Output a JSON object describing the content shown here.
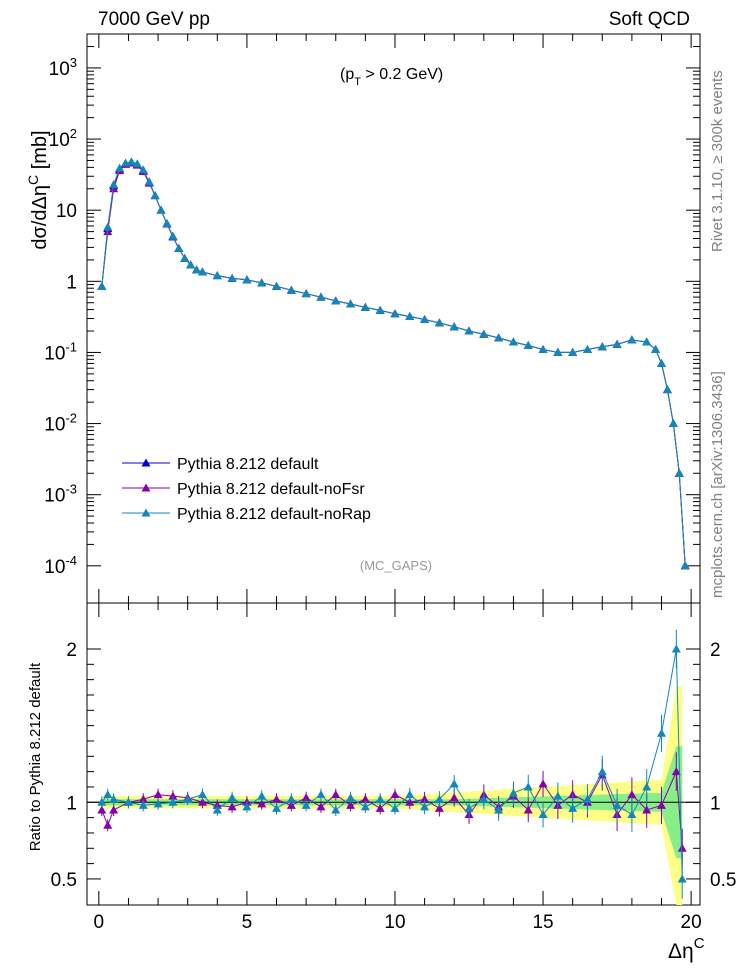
{
  "header": {
    "left_label": "7000 GeV pp",
    "right_label": "Soft QCD"
  },
  "side_labels": {
    "rivet": "Rivet 3.1.10, ≥ 300k events",
    "mcplots": "mcplots.cern.ch [arXiv:1306.3436]"
  },
  "annotations": {
    "cut_main": "(p",
    "cut_sub": "T",
    "cut_rest": " > 0.2 GeV)",
    "analysis": "(MC_GAPS)"
  },
  "colors": {
    "default": "#0000cc",
    "noFsr": "#8800aa",
    "noRap": "#1188bb",
    "band_yellow": "#ffff88",
    "band_green": "#88ee88"
  },
  "chart_data": [
    {
      "type": "line",
      "panel": "main",
      "ylabel": "dσ/dΔη^C [mb]",
      "yscale": "log",
      "ylim": [
        3e-05,
        3000
      ],
      "xlim": [
        -0.4,
        20.3
      ],
      "xticks": [
        0,
        5,
        10,
        15,
        20
      ],
      "yticks": [
        "10^3",
        "10^2",
        "10",
        "1",
        "10^-1",
        "10^-2",
        "10^-3",
        "10^-4"
      ],
      "legend_placement": "lower-left",
      "x": [
        0.1,
        0.3,
        0.5,
        0.7,
        0.9,
        1.1,
        1.3,
        1.5,
        1.7,
        1.9,
        2.1,
        2.3,
        2.5,
        2.7,
        2.9,
        3.1,
        3.3,
        3.5,
        4.0,
        4.5,
        5.0,
        5.5,
        6.0,
        6.5,
        7.0,
        7.5,
        8.0,
        8.5,
        9.0,
        9.5,
        10.0,
        10.5,
        11.0,
        11.5,
        12.0,
        12.5,
        13.0,
        13.5,
        14.0,
        14.5,
        15.0,
        15.5,
        16.0,
        16.5,
        17.0,
        17.5,
        18.0,
        18.5,
        18.8,
        19.0,
        19.2,
        19.4,
        19.6,
        19.8
      ],
      "series": [
        {
          "name": "Pythia 8.212 default",
          "values": [
            0.85,
            5.5,
            22,
            38,
            45,
            47,
            44,
            36,
            25,
            16,
            10,
            6.5,
            4.3,
            2.9,
            2.1,
            1.7,
            1.45,
            1.35,
            1.2,
            1.1,
            1.05,
            0.95,
            0.85,
            0.75,
            0.67,
            0.6,
            0.53,
            0.48,
            0.43,
            0.39,
            0.35,
            0.32,
            0.29,
            0.26,
            0.23,
            0.2,
            0.18,
            0.16,
            0.14,
            0.125,
            0.11,
            0.1,
            0.1,
            0.11,
            0.12,
            0.13,
            0.15,
            0.14,
            0.11,
            0.07,
            0.03,
            0.01,
            0.002,
            0.0001
          ]
        },
        {
          "name": "Pythia 8.212 default-noFsr",
          "values": [
            0.85,
            5.0,
            20,
            36,
            44,
            46,
            43,
            35,
            24,
            16,
            10,
            6.4,
            4.2,
            2.9,
            2.1,
            1.7,
            1.45,
            1.35,
            1.2,
            1.1,
            1.05,
            0.95,
            0.85,
            0.75,
            0.67,
            0.6,
            0.53,
            0.48,
            0.43,
            0.39,
            0.35,
            0.32,
            0.29,
            0.26,
            0.23,
            0.2,
            0.18,
            0.16,
            0.14,
            0.125,
            0.11,
            0.1,
            0.1,
            0.11,
            0.12,
            0.13,
            0.15,
            0.14,
            0.11,
            0.07,
            0.03,
            0.01,
            0.002,
            0.0001
          ]
        },
        {
          "name": "Pythia 8.212 default-noRap",
          "values": [
            0.85,
            5.8,
            23,
            39,
            46,
            48,
            45,
            37,
            25,
            16,
            10,
            6.5,
            4.3,
            2.9,
            2.1,
            1.7,
            1.45,
            1.35,
            1.2,
            1.1,
            1.05,
            0.95,
            0.85,
            0.75,
            0.67,
            0.6,
            0.53,
            0.48,
            0.43,
            0.39,
            0.35,
            0.32,
            0.29,
            0.26,
            0.23,
            0.2,
            0.18,
            0.16,
            0.14,
            0.125,
            0.11,
            0.1,
            0.1,
            0.11,
            0.12,
            0.13,
            0.15,
            0.14,
            0.11,
            0.07,
            0.03,
            0.01,
            0.002,
            0.0001
          ]
        }
      ]
    },
    {
      "type": "line",
      "panel": "ratio",
      "ylabel": "Ratio to Pythia 8.212 default",
      "xlabel": "Δη^C",
      "ylim": [
        0.33,
        2.3
      ],
      "xlim": [
        -0.4,
        20.3
      ],
      "xticks": [
        0,
        5,
        10,
        15,
        20
      ],
      "yticks": [
        0.5,
        1,
        2
      ],
      "x": [
        0.1,
        0.3,
        0.5,
        1.0,
        1.5,
        2.0,
        2.5,
        3.0,
        3.5,
        4.0,
        4.5,
        5.0,
        5.5,
        6.0,
        6.5,
        7.0,
        7.5,
        8.0,
        8.5,
        9.0,
        9.5,
        10.0,
        10.5,
        11.0,
        11.5,
        12.0,
        12.5,
        13.0,
        13.5,
        14.0,
        14.5,
        15.0,
        15.5,
        16.0,
        16.5,
        17.0,
        17.5,
        18.0,
        18.5,
        19.0,
        19.5,
        19.7
      ],
      "series": [
        {
          "name": "Pythia 8.212 default-noFsr",
          "values": [
            0.95,
            0.85,
            0.95,
            1.0,
            1.02,
            1.05,
            1.04,
            1.03,
            1.0,
            0.98,
            0.97,
            1.0,
            0.99,
            1.02,
            0.98,
            1.03,
            0.97,
            1.05,
            0.98,
            1.02,
            0.96,
            1.05,
            1.0,
            1.02,
            0.96,
            1.03,
            0.92,
            1.05,
            0.97,
            1.04,
            0.95,
            1.12,
            0.98,
            1.05,
            1.0,
            1.18,
            0.92,
            1.05,
            0.95,
            0.98,
            1.2,
            0.7
          ]
        },
        {
          "name": "Pythia 8.212 default-noRap",
          "values": [
            1.0,
            1.05,
            1.02,
            1.0,
            0.98,
            0.99,
            1.0,
            1.02,
            1.05,
            0.95,
            1.03,
            0.97,
            1.04,
            0.96,
            1.02,
            0.98,
            1.05,
            0.95,
            1.03,
            0.97,
            1.02,
            0.96,
            1.05,
            0.97,
            1.02,
            1.12,
            0.96,
            1.02,
            0.95,
            1.06,
            1.1,
            0.92,
            1.04,
            0.96,
            1.02,
            1.2,
            0.98,
            0.92,
            1.1,
            1.45,
            2.0,
            0.5
          ]
        }
      ]
    }
  ]
}
